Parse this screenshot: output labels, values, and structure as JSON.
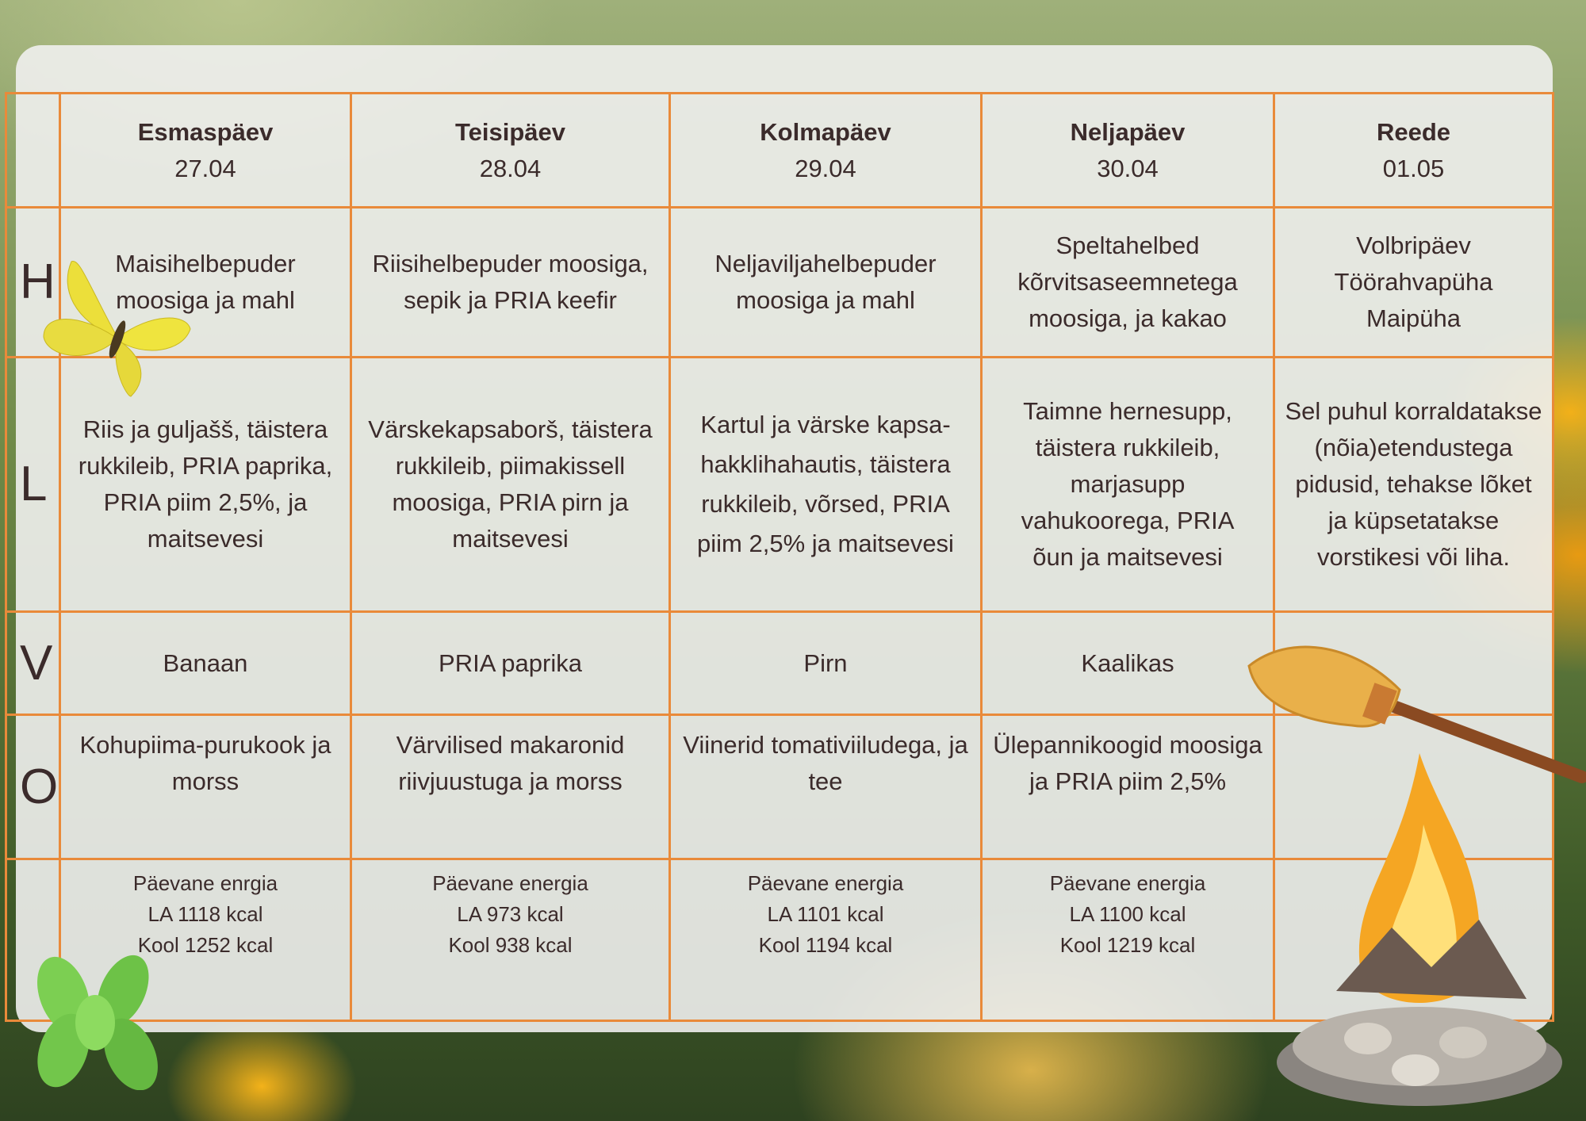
{
  "days": [
    {
      "name": "Esmaspäev",
      "date": "27.04"
    },
    {
      "name": "Teisipäev",
      "date": "28.04"
    },
    {
      "name": "Kolmapäev",
      "date": "29.04"
    },
    {
      "name": "Neljapäev",
      "date": "30.04"
    },
    {
      "name": "Reede",
      "date": "01.05"
    }
  ],
  "rows": [
    {
      "label": "H",
      "cells": [
        "Maisihelbepuder moosiga ja mahl",
        "Riisihelbepuder moosiga, sepik ja PRIA keefir",
        "Neljaviljahelbepuder moosiga ja mahl",
        "Speltahelbed kõrvitsaseemnetega moosiga, ja kakao",
        "Volbripäev Töörahvapüha Maipüha"
      ]
    },
    {
      "label": "L",
      "cells": [
        "Riis ja guljašš, täistera rukkileib, PRIA paprika, PRIA piim 2,5%, ja maitsevesi",
        "Värskekapsaborš, täistera rukkileib, piimakissell moosiga, PRIA pirn ja maitsevesi",
        "Kartul ja värske kapsa-hakklihahautis, täistera rukkileib, võrsed, PRIA piim 2,5% ja maitsevesi",
        "Taimne hernesupp, täistera rukkileib, marjasupp vahukoorega, PRIA õun ja maitsevesi",
        "Sel puhul korraldatakse (nõia)etendustega pidusid, tehakse lõket ja küpsetatakse vorstikesi või liha."
      ]
    },
    {
      "label": "V",
      "cells": [
        "Banaan",
        "PRIA paprika",
        "Pirn",
        "Kaalikas",
        ""
      ]
    },
    {
      "label": "O",
      "cells": [
        "Kohupiima-purukook ja morss",
        "Värvilised makaronid riivjuustuga ja morss",
        "Viinerid tomativiiludega, ja tee",
        "Ülepannikoogid moosiga ja PRIA piim 2,5%",
        ""
      ]
    }
  ],
  "energy": [
    {
      "title": "Päevane enrgia",
      "la": "LA 1118 kcal",
      "kool": "Kool 1252 kcal"
    },
    {
      "title": "Päevane energia",
      "la": "LA 973 kcal",
      "kool": "Kool 938 kcal"
    },
    {
      "title": "Päevane energia",
      "la": "LA 1101 kcal",
      "kool": "Kool 1194 kcal"
    },
    {
      "title": "Päevane energia",
      "la": "LA 1100 kcal",
      "kool": "Kool 1219 kcal"
    }
  ],
  "colors": {
    "grid": "#e98a3a",
    "text": "#3b2b2b"
  },
  "decorations": [
    "butterfly-icon",
    "mint-icon",
    "broom-icon",
    "bonfire-icon"
  ]
}
